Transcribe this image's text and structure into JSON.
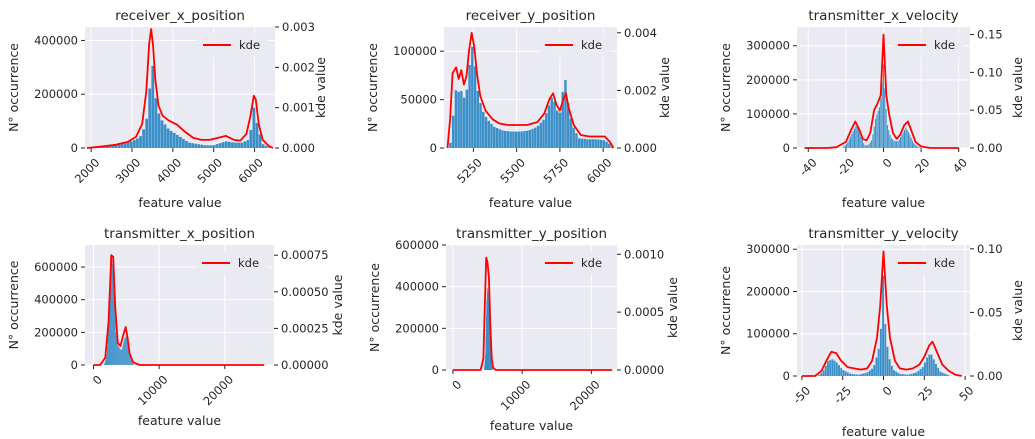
{
  "figure": {
    "colors": {
      "panel_bg": "#eaeaf2",
      "grid": "#ffffff",
      "hist": "#3a8fc8",
      "kde": "#ff0000",
      "text": "#262626"
    }
  },
  "chart_data": [
    {
      "type": "bar",
      "title": "receiver_x_position",
      "xlabel": "feature value",
      "ylabel": "N° occurrence",
      "y2label": "kde value",
      "legend": "kde",
      "legend_placement": "top-right",
      "grid": true,
      "xlim": [
        1850,
        6500
      ],
      "ylim": [
        0,
        450000
      ],
      "y2lim": [
        0,
        0.003
      ],
      "xticks": [
        2000,
        3000,
        4000,
        5000,
        6000
      ],
      "xtick_labels": [
        "2000",
        "3000",
        "4000",
        "5000",
        "6000"
      ],
      "xtick_rotation": 45,
      "yticks": [
        0,
        200000,
        400000
      ],
      "ytick_labels": [
        "0",
        "200000",
        "400000"
      ],
      "y2ticks": [
        0,
        0.001,
        0.002,
        0.003
      ],
      "y2tick_labels": [
        "0.000",
        "0.001",
        "0.002",
        "0.003"
      ],
      "histogram": {
        "points": [
          [
            1900,
            0
          ],
          [
            2000,
            3000
          ],
          [
            2500,
            10000
          ],
          [
            3000,
            25000
          ],
          [
            3200,
            40000
          ],
          [
            3350,
            90000
          ],
          [
            3450,
            240000
          ],
          [
            3500,
            320000
          ],
          [
            3550,
            260000
          ],
          [
            3600,
            160000
          ],
          [
            3700,
            110000
          ],
          [
            3800,
            90000
          ],
          [
            3900,
            70000
          ],
          [
            4000,
            60000
          ],
          [
            4200,
            40000
          ],
          [
            4400,
            20000
          ],
          [
            4600,
            15000
          ],
          [
            4800,
            10000
          ],
          [
            5000,
            10000
          ],
          [
            5300,
            25000
          ],
          [
            5500,
            20000
          ],
          [
            5700,
            20000
          ],
          [
            5850,
            30000
          ],
          [
            5950,
            90000
          ],
          [
            6000,
            170000
          ],
          [
            6050,
            100000
          ],
          [
            6200,
            15000
          ],
          [
            6400,
            0
          ]
        ]
      },
      "kde": {
        "x": [
          1900,
          2200,
          2600,
          2900,
          3100,
          3250,
          3350,
          3420,
          3470,
          3520,
          3570,
          3650,
          3750,
          3900,
          4100,
          4300,
          4500,
          4700,
          4900,
          5100,
          5300,
          5500,
          5650,
          5800,
          5900,
          5980,
          6030,
          6100,
          6200,
          6350,
          6450
        ],
        "y": [
          0.0,
          3e-05,
          8e-05,
          0.00015,
          0.00028,
          0.0006,
          0.0014,
          0.0026,
          0.00295,
          0.0025,
          0.0017,
          0.00105,
          0.0008,
          0.00068,
          0.00058,
          0.0004,
          0.00025,
          0.0002,
          0.0002,
          0.00025,
          0.0003,
          0.0002,
          0.00018,
          0.00035,
          0.0008,
          0.0013,
          0.0012,
          0.0006,
          0.0002,
          5e-05,
          0.0
        ]
      }
    },
    {
      "type": "bar",
      "title": "receiver_y_position",
      "xlabel": "feature value",
      "ylabel": "N° occurrence",
      "y2label": "kde value",
      "legend": "kde",
      "legend_placement": "top-right",
      "grid": true,
      "xlim": [
        5080,
        6080
      ],
      "ylim": [
        0,
        125000
      ],
      "y2lim": [
        0,
        0.0042
      ],
      "xticks": [
        5250,
        5500,
        5750,
        6000
      ],
      "xtick_labels": [
        "5250",
        "5500",
        "5750",
        "6000"
      ],
      "xtick_rotation": 45,
      "yticks": [
        0,
        50000,
        100000
      ],
      "ytick_labels": [
        "0",
        "50000",
        "100000"
      ],
      "y2ticks": [
        0,
        0.002,
        0.004
      ],
      "y2tick_labels": [
        "0.000",
        "0.002",
        "0.004"
      ],
      "histogram": {
        "points": [
          [
            5110,
            0
          ],
          [
            5125,
            10000
          ],
          [
            5140,
            50000
          ],
          [
            5155,
            65000
          ],
          [
            5170,
            55000
          ],
          [
            5185,
            60000
          ],
          [
            5200,
            50000
          ],
          [
            5215,
            62000
          ],
          [
            5230,
            88000
          ],
          [
            5245,
            105000
          ],
          [
            5260,
            85000
          ],
          [
            5275,
            60000
          ],
          [
            5300,
            40000
          ],
          [
            5330,
            30000
          ],
          [
            5370,
            22000
          ],
          [
            5420,
            18000
          ],
          [
            5470,
            17000
          ],
          [
            5520,
            17000
          ],
          [
            5570,
            18000
          ],
          [
            5620,
            22000
          ],
          [
            5660,
            30000
          ],
          [
            5690,
            45000
          ],
          [
            5710,
            55000
          ],
          [
            5730,
            40000
          ],
          [
            5750,
            35000
          ],
          [
            5765,
            55000
          ],
          [
            5780,
            75000
          ],
          [
            5795,
            50000
          ],
          [
            5820,
            25000
          ],
          [
            5860,
            10000
          ],
          [
            5910,
            9000
          ],
          [
            5960,
            9000
          ],
          [
            6010,
            8000
          ],
          [
            6040,
            4000
          ],
          [
            6060,
            0
          ]
        ]
      },
      "kde": {
        "x": [
          5100,
          5115,
          5130,
          5150,
          5165,
          5180,
          5195,
          5210,
          5225,
          5240,
          5255,
          5270,
          5290,
          5320,
          5360,
          5400,
          5450,
          5500,
          5560,
          5620,
          5660,
          5690,
          5710,
          5730,
          5750,
          5770,
          5785,
          5800,
          5830,
          5870,
          5920,
          5970,
          6010,
          6040,
          6060
        ],
        "y": [
          0.0,
          0.001,
          0.0026,
          0.0028,
          0.0024,
          0.0027,
          0.0022,
          0.0025,
          0.0034,
          0.004,
          0.0035,
          0.0026,
          0.0018,
          0.0013,
          0.001,
          0.00085,
          0.0008,
          0.0008,
          0.0008,
          0.0009,
          0.0012,
          0.0017,
          0.0019,
          0.0015,
          0.0013,
          0.0017,
          0.0019,
          0.0014,
          0.0008,
          0.00045,
          0.0004,
          0.0004,
          0.0004,
          0.0002,
          0.0
        ]
      }
    },
    {
      "type": "bar",
      "title": "transmitter_x_velocity",
      "xlabel": "feature value",
      "ylabel": "N° occurrence",
      "y2label": "kde value",
      "legend": "kde",
      "legend_placement": "top-right",
      "grid": true,
      "xlim": [
        -46,
        46
      ],
      "ylim": [
        0,
        355000
      ],
      "y2lim": [
        0,
        0.16
      ],
      "xticks": [
        -40,
        -20,
        0,
        20,
        40
      ],
      "xtick_labels": [
        "-40",
        "-20",
        "0",
        "20",
        "40"
      ],
      "xtick_rotation": 45,
      "yticks": [
        0,
        100000,
        200000,
        300000
      ],
      "ytick_labels": [
        "0",
        "100000",
        "200000",
        "300000"
      ],
      "y2ticks": [
        0,
        0.05,
        0.1,
        0.15
      ],
      "y2tick_labels": [
        "0.00",
        "0.05",
        "0.10",
        "0.15"
      ],
      "histogram": {
        "points": [
          [
            -22,
            0
          ],
          [
            -19,
            15000
          ],
          [
            -16,
            50000
          ],
          [
            -14,
            70000
          ],
          [
            -12,
            35000
          ],
          [
            -10,
            8000
          ],
          [
            -8,
            8000
          ],
          [
            -6,
            25000
          ],
          [
            -4,
            90000
          ],
          [
            -2,
            120000
          ],
          [
            -1,
            160000
          ],
          [
            0,
            250000
          ],
          [
            1,
            150000
          ],
          [
            2,
            70000
          ],
          [
            4,
            30000
          ],
          [
            6,
            20000
          ],
          [
            8,
            20000
          ],
          [
            10,
            40000
          ],
          [
            12,
            60000
          ],
          [
            14,
            40000
          ],
          [
            16,
            15000
          ],
          [
            18,
            5000
          ],
          [
            20,
            0
          ]
        ]
      },
      "kde": {
        "x": [
          -42,
          -30,
          -25,
          -20,
          -17,
          -15,
          -13,
          -11,
          -9,
          -7,
          -5,
          -3,
          -1.5,
          0,
          1.5,
          3,
          5,
          7,
          9,
          11,
          13,
          15,
          17,
          20,
          25,
          40
        ],
        "y": [
          0.0,
          0.0,
          0.001,
          0.008,
          0.025,
          0.035,
          0.025,
          0.012,
          0.01,
          0.02,
          0.05,
          0.06,
          0.07,
          0.15,
          0.07,
          0.045,
          0.02,
          0.012,
          0.018,
          0.03,
          0.035,
          0.022,
          0.008,
          0.002,
          0.0,
          0.0
        ]
      }
    },
    {
      "type": "bar",
      "title": "transmitter_x_position",
      "xlabel": "feature value",
      "ylabel": "N° occurrence",
      "y2label": "kde value",
      "legend": "kde",
      "legend_placement": "top-right",
      "grid": true,
      "xlim": [
        -1300,
        27500
      ],
      "ylim": [
        0,
        735000
      ],
      "y2lim": [
        0,
        0.00082
      ],
      "xticks": [
        0,
        10000,
        20000
      ],
      "xtick_labels": [
        "0",
        "10000",
        "20000"
      ],
      "xtick_rotation": 45,
      "yticks": [
        0,
        200000,
        400000,
        600000
      ],
      "ytick_labels": [
        "0",
        "200000",
        "400000",
        "600000"
      ],
      "y2ticks": [
        0,
        0.00025,
        0.0005,
        0.00075
      ],
      "y2tick_labels": [
        "0.00000",
        "0.00025",
        "0.00050",
        "0.00075"
      ],
      "histogram": {
        "points": [
          [
            1600,
            0
          ],
          [
            2000,
            50000
          ],
          [
            2400,
            300000
          ],
          [
            2800,
            650000
          ],
          [
            3100,
            500000
          ],
          [
            3400,
            200000
          ],
          [
            3700,
            120000
          ],
          [
            4000,
            100000
          ],
          [
            4300,
            90000
          ],
          [
            4700,
            160000
          ],
          [
            5000,
            180000
          ],
          [
            5300,
            100000
          ],
          [
            5700,
            30000
          ],
          [
            6200,
            0
          ]
        ]
      },
      "kde": {
        "x": [
          0,
          1000,
          1800,
          2300,
          2700,
          3000,
          3300,
          3700,
          4100,
          4500,
          4900,
          5200,
          5500,
          6000,
          7000,
          26000
        ],
        "y": [
          0.0,
          0.0,
          5e-05,
          0.0003,
          0.00075,
          0.00074,
          0.0004,
          0.00015,
          0.00013,
          0.0002,
          0.00026,
          0.00018,
          8e-05,
          2e-05,
          0.0,
          0.0
        ]
      }
    },
    {
      "type": "bar",
      "title": "transmitter_y_position",
      "xlabel": "feature value",
      "ylabel": "N° occurrence",
      "y2label": "kde value",
      "legend": "kde",
      "legend_placement": "top-right",
      "grid": true,
      "xlim": [
        -1000,
        23700
      ],
      "ylim": [
        0,
        600000
      ],
      "y2lim": [
        0,
        0.00108
      ],
      "xticks": [
        0,
        10000,
        20000
      ],
      "xtick_labels": [
        "0",
        "10000",
        "20000"
      ],
      "xtick_rotation": 45,
      "yticks": [
        0,
        200000,
        400000,
        600000
      ],
      "ytick_labels": [
        "0",
        "200000",
        "400000",
        "600000"
      ],
      "y2ticks": [
        0,
        0.0005,
        0.001
      ],
      "y2tick_labels": [
        "0.0000",
        "0.0005",
        "0.0010"
      ],
      "histogram": {
        "points": [
          [
            4500,
            0
          ],
          [
            4700,
            80000
          ],
          [
            4850,
            320000
          ],
          [
            5000,
            400000
          ],
          [
            5150,
            300000
          ],
          [
            5300,
            150000
          ],
          [
            5500,
            30000
          ],
          [
            5700,
            0
          ]
        ]
      },
      "kde": {
        "x": [
          0,
          4000,
          4400,
          4600,
          4800,
          5000,
          5200,
          5400,
          5600,
          5800,
          6200,
          23000
        ],
        "y": [
          0.0,
          0.0,
          0.0001,
          0.00055,
          0.00097,
          0.00093,
          0.0008,
          0.0004,
          0.0001,
          2e-05,
          0.0,
          0.0
        ]
      }
    },
    {
      "type": "bar",
      "title": "transmitter_y_velocity",
      "xlabel": "feature value",
      "ylabel": "N° occurrence",
      "y2label": "kde value",
      "legend": "kde",
      "legend_placement": "top-right",
      "grid": true,
      "xlim": [
        -53,
        53
      ],
      "ylim": [
        0,
        310000
      ],
      "y2lim": [
        0,
        0.103
      ],
      "xticks": [
        -50,
        -25,
        0,
        25,
        50
      ],
      "xtick_labels": [
        "-50",
        "-25",
        "0",
        "25",
        "50"
      ],
      "xtick_rotation": 45,
      "yticks": [
        0,
        100000,
        200000,
        300000
      ],
      "ytick_labels": [
        "0",
        "100000",
        "200000",
        "300000"
      ],
      "y2ticks": [
        0,
        0.05,
        0.1
      ],
      "y2tick_labels": [
        "0.00",
        "0.05",
        "0.10"
      ],
      "histogram": {
        "points": [
          [
            -40,
            0
          ],
          [
            -37,
            10000
          ],
          [
            -34,
            35000
          ],
          [
            -31,
            40000
          ],
          [
            -28,
            30000
          ],
          [
            -25,
            15000
          ],
          [
            -20,
            5000
          ],
          [
            -15,
            3000
          ],
          [
            -10,
            8000
          ],
          [
            -6,
            20000
          ],
          [
            -3,
            60000
          ],
          [
            -1,
            130000
          ],
          [
            0,
            260000
          ],
          [
            1,
            130000
          ],
          [
            3,
            50000
          ],
          [
            6,
            15000
          ],
          [
            10,
            5000
          ],
          [
            15,
            3000
          ],
          [
            20,
            8000
          ],
          [
            24,
            20000
          ],
          [
            27,
            45000
          ],
          [
            29,
            55000
          ],
          [
            32,
            30000
          ],
          [
            35,
            10000
          ],
          [
            38,
            5000
          ],
          [
            41,
            0
          ]
        ]
      },
      "kde": {
        "x": [
          -50,
          -42,
          -38,
          -35,
          -32,
          -29,
          -26,
          -22,
          -18,
          -14,
          -10,
          -7,
          -4,
          -2,
          0,
          2,
          4,
          7,
          10,
          14,
          18,
          22,
          25,
          28,
          30,
          33,
          36,
          40,
          44,
          48
        ],
        "y": [
          0.0,
          0.0,
          0.004,
          0.012,
          0.019,
          0.018,
          0.012,
          0.007,
          0.006,
          0.005,
          0.006,
          0.012,
          0.03,
          0.055,
          0.098,
          0.055,
          0.03,
          0.012,
          0.006,
          0.005,
          0.006,
          0.009,
          0.015,
          0.024,
          0.027,
          0.018,
          0.009,
          0.004,
          0.001,
          0.0
        ]
      }
    }
  ]
}
